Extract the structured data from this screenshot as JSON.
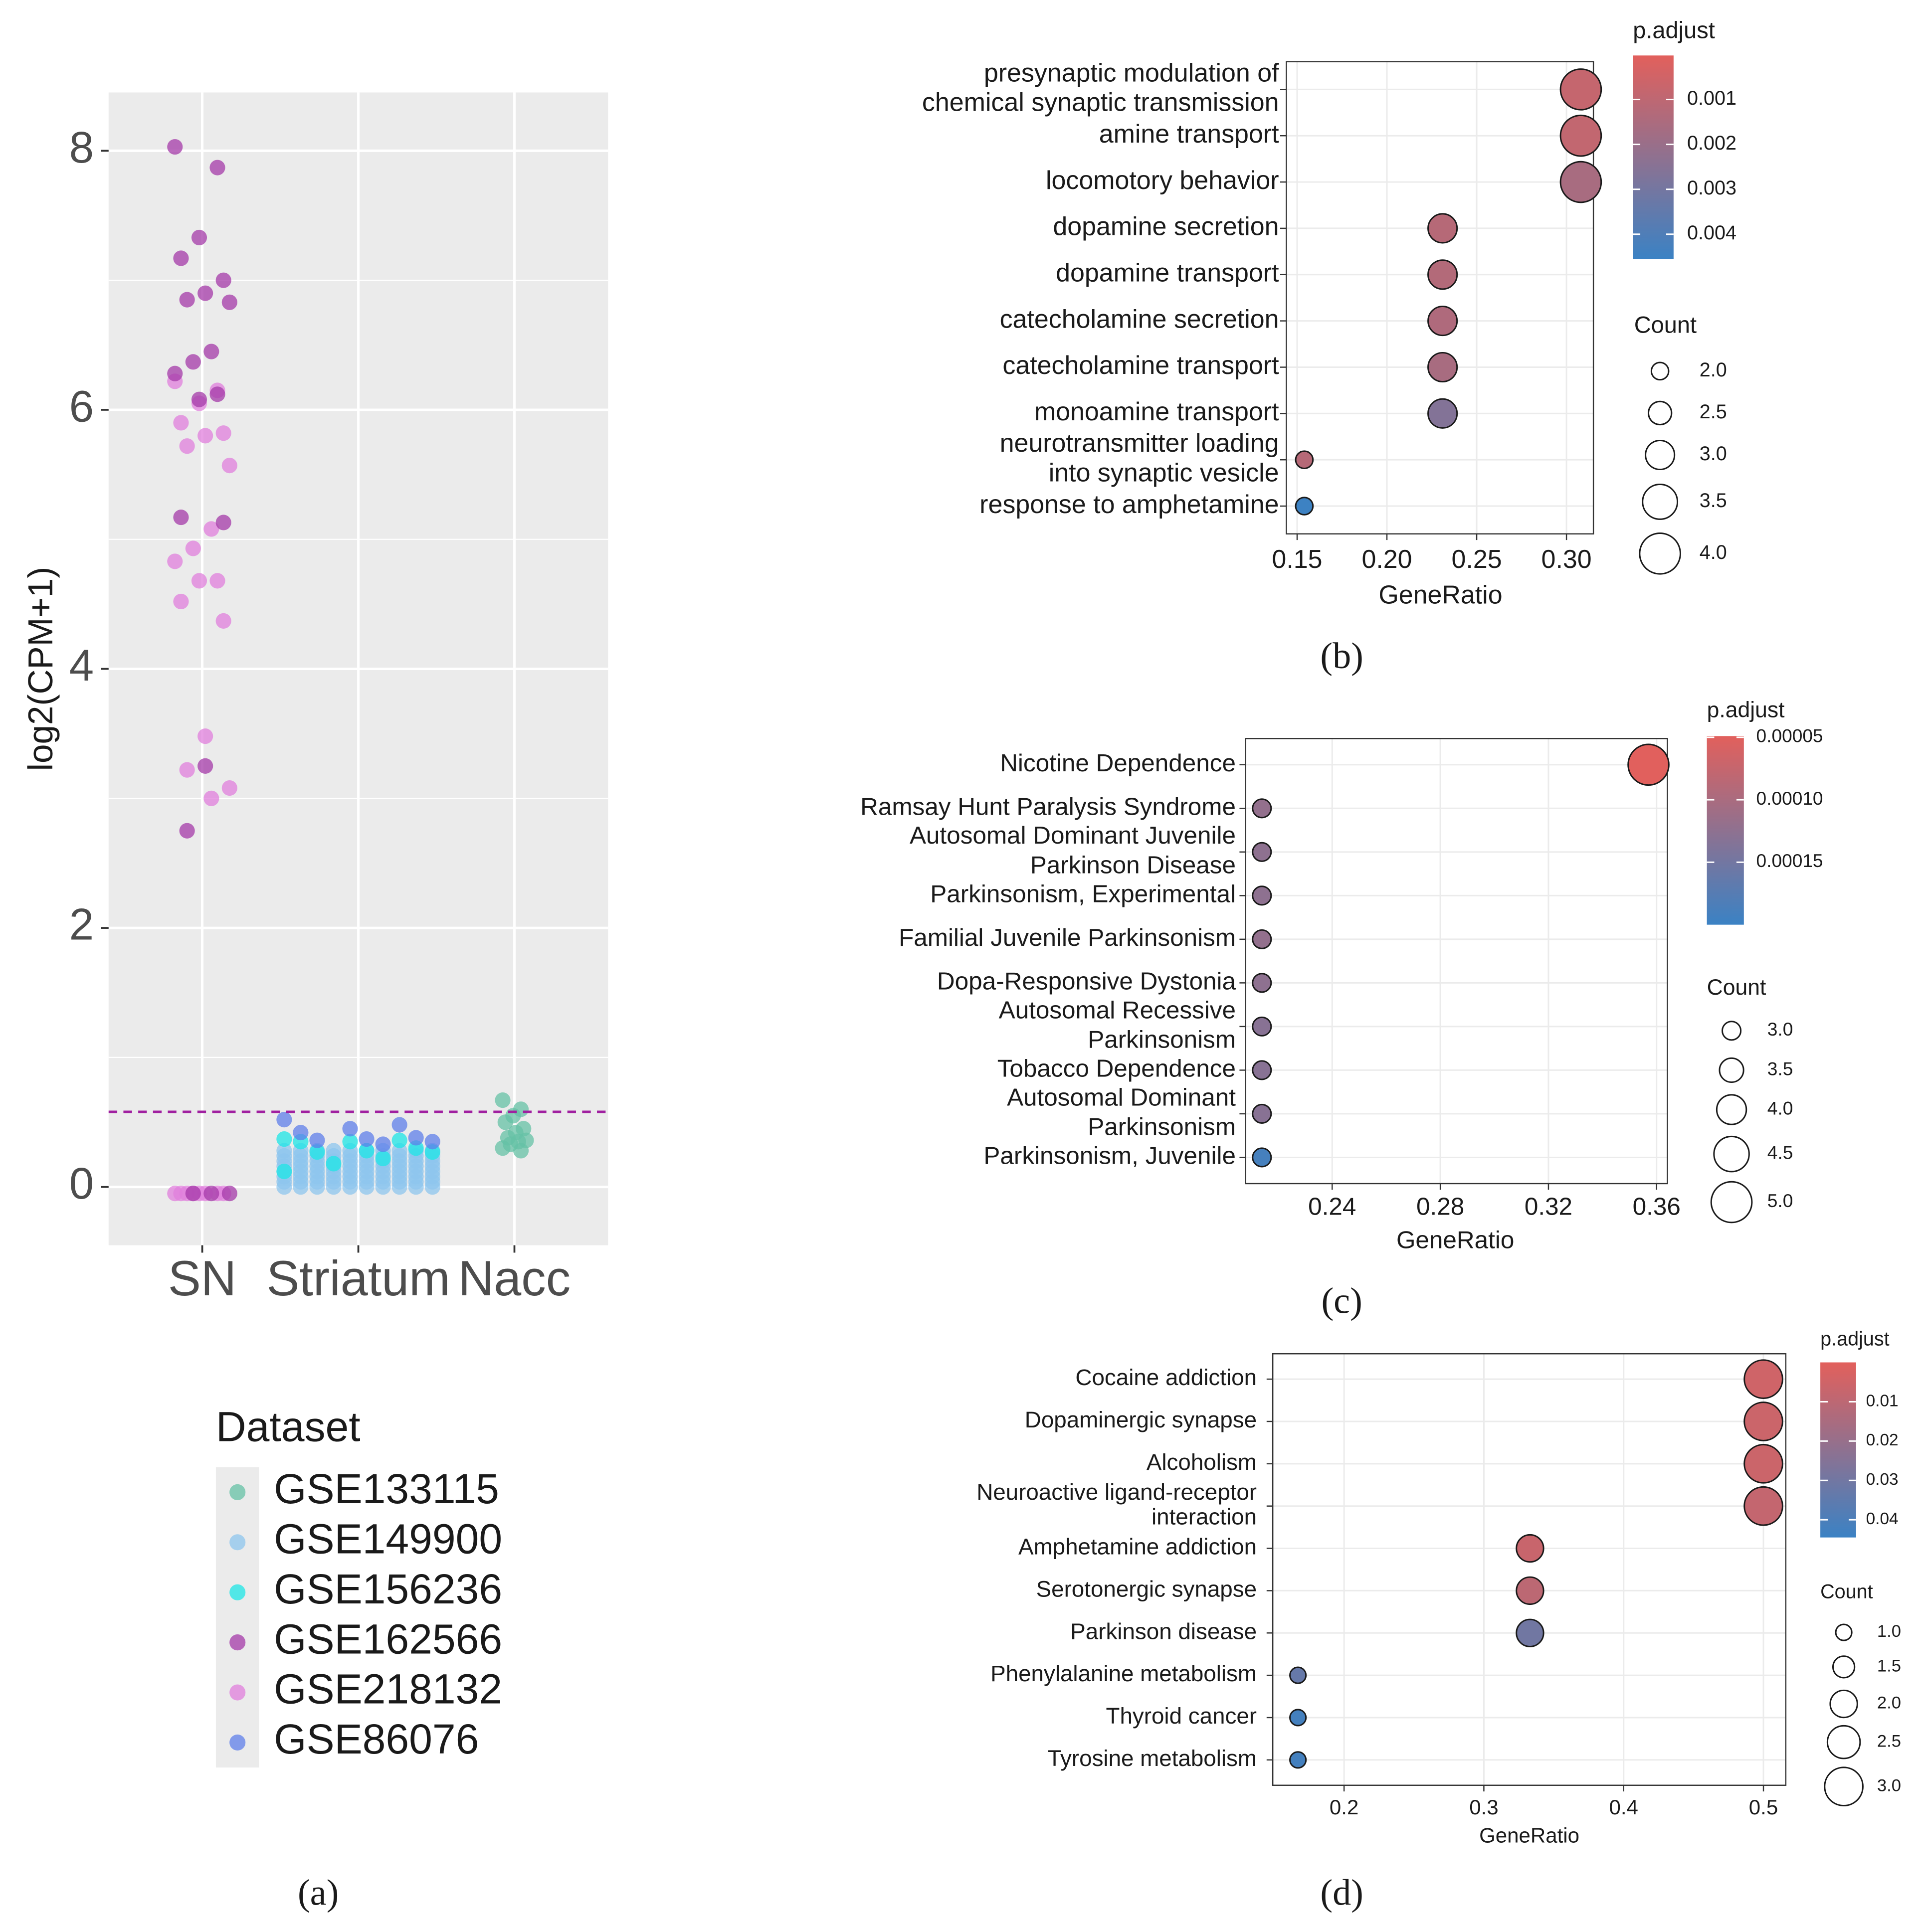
{
  "chart_data": [
    {
      "type": "strip",
      "panel_label": "(a)",
      "categories": [
        "SN",
        "Striatum",
        "Nacc"
      ],
      "ylabel": "log2(CPM+1)",
      "ylim": [
        -0.45,
        8.45
      ],
      "yticks": [
        0,
        2,
        4,
        6,
        8
      ],
      "yminor": [
        1,
        3,
        5,
        7
      ],
      "hline": 0.58,
      "hline_color": "#a020a0",
      "grid": true,
      "legend_title": "Dataset",
      "series": [
        {
          "name": "GSE133115",
          "color": "#66c2a5",
          "category": "Nacc",
          "values": [
            0.67,
            0.6,
            0.55,
            0.5,
            0.45,
            0.42,
            0.38,
            0.36,
            0.35,
            0.33,
            0.3,
            0.28
          ]
        },
        {
          "name": "GSE149900",
          "color": "#8ec5ee",
          "category": "Striatum",
          "values": [
            0,
            0,
            0,
            0,
            0,
            0,
            0,
            0,
            0,
            0,
            0.04,
            0.04,
            0.04,
            0.04,
            0.04,
            0.04,
            0.04,
            0.04,
            0.04,
            0.04,
            0.08,
            0.08,
            0.08,
            0.08,
            0.08,
            0.08,
            0.08,
            0.08,
            0.08,
            0.08,
            0.12,
            0.12,
            0.12,
            0.12,
            0.12,
            0.12,
            0.12,
            0.12,
            0.12,
            0.12,
            0.16,
            0.16,
            0.16,
            0.16,
            0.16,
            0.16,
            0.16,
            0.16,
            0.16,
            0.16,
            0.2,
            0.2,
            0.2,
            0.2,
            0.2,
            0.2,
            0.2,
            0.2,
            0.2,
            0.2,
            0.24,
            0.24,
            0.24,
            0.24,
            0.24,
            0.24,
            0.24,
            0.24,
            0.24,
            0.24,
            0.28,
            0.28,
            0.28,
            0.28,
            0.28,
            0.28,
            0.28,
            0.28,
            0.28,
            0.28
          ]
        },
        {
          "name": "GSE156236",
          "color": "#1de5e5",
          "category": "Striatum",
          "values": [
            0.37,
            0.36,
            0.35,
            0.35,
            0.3,
            0.28,
            0.27,
            0.27,
            0.22,
            0.18,
            0.12
          ]
        },
        {
          "name": "GSE162566",
          "color": "#a43aa8",
          "category": "SN",
          "values": [
            8.03,
            7.87,
            7.33,
            7.17,
            7.0,
            6.9,
            6.85,
            6.83,
            6.45,
            6.37,
            6.28,
            6.12,
            6.08,
            5.17,
            5.13,
            3.25,
            2.75,
            -0.05,
            -0.05,
            -0.05
          ]
        },
        {
          "name": "GSE218132",
          "color": "#e07fdc",
          "category": "SN",
          "values": [
            6.22,
            6.15,
            6.05,
            5.9,
            5.82,
            5.8,
            5.72,
            5.57,
            5.08,
            4.93,
            4.83,
            4.68,
            4.68,
            4.52,
            4.37,
            3.48,
            3.22,
            3.08,
            3.0,
            -0.05,
            -0.05,
            -0.05,
            -0.05,
            -0.05,
            -0.05,
            -0.05,
            -0.05
          ]
        },
        {
          "name": "GSE86076",
          "color": "#5f7fe9",
          "category": "Striatum",
          "values": [
            0.52,
            0.48,
            0.45,
            0.42,
            0.38,
            0.37,
            0.36,
            0.35,
            0.33
          ]
        }
      ]
    },
    {
      "type": "dot",
      "panel_label": "(b)",
      "categories": [
        [
          "presynaptic modulation of",
          "chemical synaptic transmission"
        ],
        [
          "amine transport"
        ],
        [
          "locomotory behavior"
        ],
        [
          "dopamine secretion"
        ],
        [
          "dopamine transport"
        ],
        [
          "catecholamine secretion"
        ],
        [
          "catecholamine transport"
        ],
        [
          "monoamine transport"
        ],
        [
          "neurotransmitter loading",
          "into synaptic vesicle"
        ],
        [
          "response to amphetamine"
        ]
      ],
      "x": [
        0.308,
        0.308,
        0.308,
        0.231,
        0.231,
        0.231,
        0.231,
        0.231,
        0.154,
        0.154
      ],
      "p_adjust": [
        0.0008,
        0.0009,
        0.0016,
        0.0012,
        0.0013,
        0.0014,
        0.0016,
        0.0026,
        0.0012,
        0.0045
      ],
      "count": [
        4,
        4,
        4,
        3,
        3,
        3,
        3,
        3,
        2,
        2
      ],
      "xlabel": "GeneRatio",
      "xlim": [
        0.144,
        0.315
      ],
      "xticks": [
        0.15,
        {
          "value": 0.2,
          "label": "0.20"
        },
        0.25,
        {
          "value": 0.3,
          "label": "0.30"
        }
      ],
      "color_title": "p.adjust",
      "colormap": [
        "#e2605c",
        "#3b82c4"
      ],
      "clim": [
        2e-05,
        0.00455
      ],
      "cticks": [
        0.001,
        0.002,
        0.003,
        0.004
      ],
      "size_title": "Count",
      "size_ticks": [
        {
          "value": 2,
          "label": "2.0"
        },
        2.5,
        {
          "value": 3,
          "label": "3.0"
        },
        3.5,
        {
          "value": 4,
          "label": "4.0"
        }
      ]
    },
    {
      "type": "dot",
      "panel_label": "(c)",
      "categories": [
        [
          "Nicotine Dependence"
        ],
        [
          "Ramsay Hunt Paralysis Syndrome"
        ],
        [
          "Autosomal Dominant Juvenile",
          "Parkinson Disease"
        ],
        [
          "Parkinsonism, Experimental"
        ],
        [
          "Familial Juvenile Parkinsonism"
        ],
        [
          "Dopa-Responsive Dystonia"
        ],
        [
          "Autosomal Recessive",
          "Parkinsonism"
        ],
        [
          "Tobacco Dependence"
        ],
        [
          "Autosomal Dominant",
          "Parkinsonism"
        ],
        [
          "Parkinsonism, Juvenile"
        ]
      ],
      "x": [
        0.357,
        0.214,
        0.214,
        0.214,
        0.214,
        0.214,
        0.214,
        0.214,
        0.214,
        0.214
      ],
      "p_adjust": [
        5e-05,
        0.00012,
        0.000125,
        0.000125,
        0.00012,
        0.000125,
        0.00013,
        0.00013,
        0.00013,
        0.00019
      ],
      "count": [
        5,
        3,
        3,
        3,
        3,
        3,
        3,
        3,
        3,
        3
      ],
      "xlabel": "GeneRatio",
      "xlim": [
        0.208,
        0.364
      ],
      "xticks": [
        0.24,
        0.28,
        0.32,
        0.36
      ],
      "color_title": "p.adjust",
      "colormap": [
        "#e2605c",
        "#3b82c4"
      ],
      "clim": [
        4.9e-05,
        0.0002
      ],
      "cticks": [
        5e-05,
        {
          "value": 0.0001,
          "label": "0.00010"
        },
        0.00015
      ],
      "size_title": "Count",
      "size_ticks": [
        {
          "value": 3,
          "label": "3.0"
        },
        3.5,
        {
          "value": 4,
          "label": "4.0"
        },
        4.5,
        {
          "value": 5,
          "label": "5.0"
        }
      ]
    },
    {
      "type": "dot",
      "panel_label": "(d)",
      "categories": [
        [
          "Cocaine addiction"
        ],
        [
          "Dopaminergic synapse"
        ],
        [
          "Alcoholism"
        ],
        [
          "Neuroactive ligand-receptor",
          "interaction"
        ],
        [
          "Amphetamine addiction"
        ],
        [
          "Serotonergic synapse"
        ],
        [
          "Parkinson disease"
        ],
        [
          "Phenylalanine metabolism"
        ],
        [
          "Thyroid cancer"
        ],
        [
          "Tyrosine metabolism"
        ]
      ],
      "x": [
        0.5,
        0.5,
        0.5,
        0.5,
        0.333,
        0.333,
        0.333,
        0.167,
        0.167,
        0.167
      ],
      "p_adjust": [
        0.005,
        0.006,
        0.006,
        0.008,
        0.007,
        0.01,
        0.03,
        0.033,
        0.042,
        0.042
      ],
      "count": [
        3,
        3,
        3,
        3,
        2,
        2,
        2,
        1,
        1,
        1
      ],
      "xlabel": "GeneRatio",
      "xlim": [
        0.149,
        0.516
      ],
      "xticks": [
        0.2,
        0.3,
        0.4,
        0.5
      ],
      "color_title": "p.adjust",
      "colormap": [
        "#e2605c",
        "#3b82c4"
      ],
      "clim": [
        0.0,
        0.0445
      ],
      "cticks": [
        0.01,
        0.02,
        0.03,
        0.04
      ],
      "size_title": "Count",
      "size_ticks": [
        {
          "value": 1,
          "label": "1.0"
        },
        1.5,
        {
          "value": 2,
          "label": "2.0"
        },
        2.5,
        {
          "value": 3,
          "label": "3.0"
        }
      ]
    }
  ]
}
